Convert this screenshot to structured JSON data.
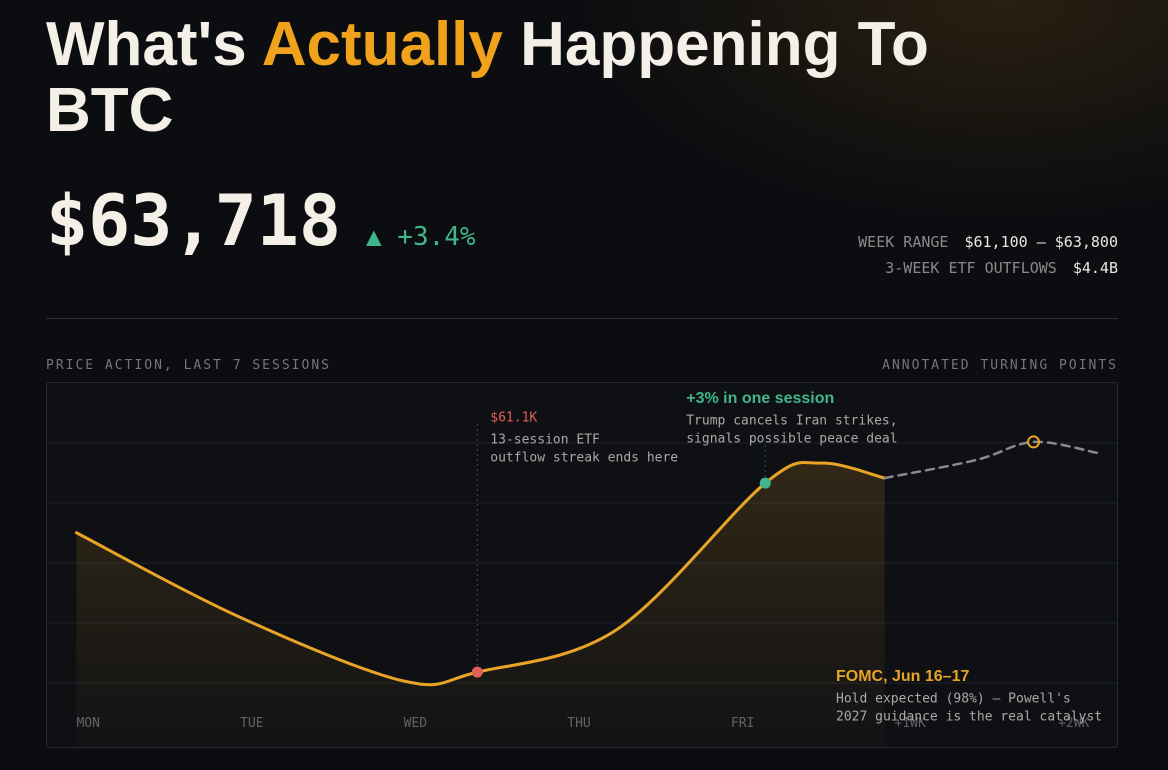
{
  "header": {
    "title_before": "What's",
    "title_highlight": "Actually",
    "title_after": "Happening To BTC"
  },
  "price": {
    "value": "$63,718",
    "change": "▲ +3.4%"
  },
  "stats": [
    {
      "label": "WEEK RANGE",
      "value": "$61,100 – $63,800"
    },
    {
      "label": "3-WEEK ETF OUTFLOWS",
      "value": "$4.4B"
    }
  ],
  "section": {
    "left": "PRICE ACTION, LAST 7 SESSIONS",
    "right": "ANNOTATED TURNING POINTS"
  },
  "chart_data": {
    "type": "line",
    "xlim": [
      -0.18,
      6.36
    ],
    "ylim": [
      60090,
      65000
    ],
    "xticks": [
      {
        "value": 0,
        "label": "MON"
      },
      {
        "value": 1,
        "label": "TUE"
      },
      {
        "value": 2,
        "label": "WED"
      },
      {
        "value": 3,
        "label": "THU"
      },
      {
        "value": 4,
        "label": "FRI"
      },
      {
        "value": 5,
        "label": "+1WK"
      },
      {
        "value": 6,
        "label": "+2WK"
      }
    ],
    "series": [
      {
        "color": "#e8a427",
        "x": [
          0,
          1,
          2,
          2.45,
          3.3,
          4.21,
          4.55,
          4.94
        ],
        "values": [
          62980,
          61840,
          60980,
          61100,
          61670,
          63650,
          63920,
          63718
        ]
      },
      {
        "color": "#8a8a8a",
        "dashed": true,
        "x": [
          4.94,
          5.5,
          5.85,
          6.24
        ],
        "values": [
          63718,
          63962,
          64205,
          64057
        ]
      }
    ],
    "annotations": [
      {
        "series": 0,
        "index": 3,
        "color": "#e0605a",
        "label": "$61.1K",
        "lines": [
          "13-session ETF",
          "outflow streak ends here"
        ]
      },
      {
        "series": 0,
        "index": 5,
        "color": "#3fb68b",
        "label": "+3% in one session",
        "lines": [
          "Trump cancels Iran strikes,",
          "signals possible peace deal"
        ]
      },
      {
        "series": 1,
        "index": 2,
        "color": "#e8a427",
        "label": "FOMC, Jun 16–17",
        "lines": [
          "Hold expected (98%) — Powell's",
          "2027 guidance is the real catalyst"
        ]
      }
    ]
  }
}
